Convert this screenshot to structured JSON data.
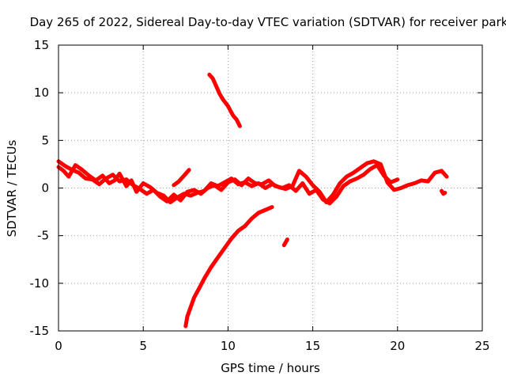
{
  "chart_data": {
    "type": "line",
    "title": "Day 265 of 2022, Sidereal Day-to-day VTEC variation (SDTVAR) for receiver park",
    "xlabel": "GPS time / hours",
    "ylabel": "SDTVAR / TECUs",
    "xlim": [
      0,
      25
    ],
    "ylim": [
      -15,
      15
    ],
    "xticks": [
      0,
      5,
      10,
      15,
      20,
      25
    ],
    "yticks": [
      -15,
      -10,
      -5,
      0,
      5,
      10,
      15
    ],
    "grid": true,
    "color": "#ff0000",
    "series": [
      {
        "name": "main-band-a",
        "x": [
          0,
          0.3,
          0.6,
          1,
          1.4,
          1.8,
          2.2,
          2.6,
          3,
          3.3,
          3.6,
          4,
          4.3,
          4.6,
          5,
          5.4,
          5.8,
          6.2,
          6.6,
          7,
          7.4,
          7.8,
          8.2,
          8.6,
          9,
          9.4,
          9.8,
          10.2,
          10.6,
          11,
          11.4,
          11.8,
          12.2,
          12.6,
          13,
          13.4,
          13.8,
          14.2,
          14.6,
          15,
          15.4,
          15.8,
          16.2,
          16.6,
          17,
          17.4,
          17.8,
          18.2,
          18.6,
          19,
          19.4,
          19.8,
          20.2,
          20.6,
          21,
          21.4,
          21.8,
          22.2,
          22.6,
          22.9
        ],
        "y": [
          2.2,
          1.8,
          1.2,
          2.4,
          1.9,
          1.3,
          0.8,
          1.3,
          0.5,
          0.8,
          1.5,
          0.2,
          0.8,
          -0.4,
          0.5,
          0.1,
          -0.5,
          -0.8,
          -1.5,
          -1,
          -0.6,
          -0.8,
          -0.5,
          -0.3,
          0.5,
          0.2,
          0.6,
          1,
          0.4,
          0.6,
          0.2,
          0.5,
          0,
          0.4,
          0.1,
          -0.1,
          0.2,
          1.8,
          1.2,
          0.3,
          -0.4,
          -1.5,
          -0.7,
          0.5,
          1.2,
          1.6,
          2.1,
          2.6,
          2.8,
          2.5,
          0.6,
          -0.2,
          0,
          0.3,
          0.5,
          0.8,
          0.7,
          1.6,
          1.8,
          1.2
        ]
      },
      {
        "name": "main-band-b",
        "x": [
          0,
          0.4,
          0.8,
          1.2,
          1.6,
          2,
          2.4,
          2.8,
          3.2,
          3.6,
          4,
          4.4,
          4.8,
          5.2,
          5.6,
          6,
          6.4,
          6.8,
          7.2,
          7.6,
          8,
          8.4,
          8.8,
          9.2,
          9.6,
          10,
          10.4,
          10.8,
          11.2,
          11.6,
          12,
          12.4,
          12.8,
          13.2,
          13.6,
          14,
          14.4,
          14.8,
          15.2,
          15.6,
          16,
          16.4,
          16.8,
          17.2,
          17.6,
          18,
          18.4,
          18.8,
          19.2,
          19.6,
          20
        ],
        "y": [
          2.8,
          2.3,
          1.9,
          1.6,
          1,
          0.9,
          0.4,
          1,
          1.4,
          0.7,
          0.9,
          0.3,
          -0.1,
          -0.6,
          -0.2,
          -0.9,
          -1.4,
          -0.7,
          -1.3,
          -0.4,
          -0.2,
          -0.6,
          0,
          0.3,
          -0.2,
          0.6,
          0.9,
          0.3,
          1,
          0.5,
          0.4,
          0.8,
          0.2,
          0,
          0.3,
          -0.3,
          0.5,
          -0.6,
          -0.2,
          -1.2,
          -1.6,
          -0.9,
          0.2,
          0.7,
          1,
          1.4,
          2,
          2.4,
          1.3,
          0.6,
          0.9
        ]
      },
      {
        "name": "rising-arc",
        "x": [
          7.5,
          7.6,
          7.8,
          8,
          8.3,
          8.6,
          9,
          9.4,
          9.8,
          10.2,
          10.6,
          11,
          11.4,
          11.8,
          12.2,
          12.6
        ],
        "y": [
          -14.5,
          -13.5,
          -12.5,
          -11.5,
          -10.5,
          -9.5,
          -8.3,
          -7.3,
          -6.3,
          -5.3,
          -4.5,
          -4,
          -3.2,
          -2.6,
          -2.3,
          -2
        ]
      },
      {
        "name": "falling-segment",
        "x": [
          8.9,
          9.1,
          9.3,
          9.5,
          9.7,
          10,
          10.3,
          10.5,
          10.7
        ],
        "y": [
          11.9,
          11.5,
          10.7,
          9.9,
          9.3,
          8.6,
          7.6,
          7.2,
          6.5
        ]
      },
      {
        "name": "short-fragment-1",
        "x": [
          6.8,
          7.1,
          7.4,
          7.7
        ],
        "y": [
          0.3,
          0.7,
          1.3,
          1.9
        ]
      },
      {
        "name": "short-fragment-2",
        "x": [
          13.3,
          13.5
        ],
        "y": [
          -6,
          -5.4
        ]
      },
      {
        "name": "short-fragment-3",
        "x": [
          22.6,
          22.7,
          22.8
        ],
        "y": [
          -0.3,
          -0.6,
          -0.5
        ]
      }
    ]
  }
}
